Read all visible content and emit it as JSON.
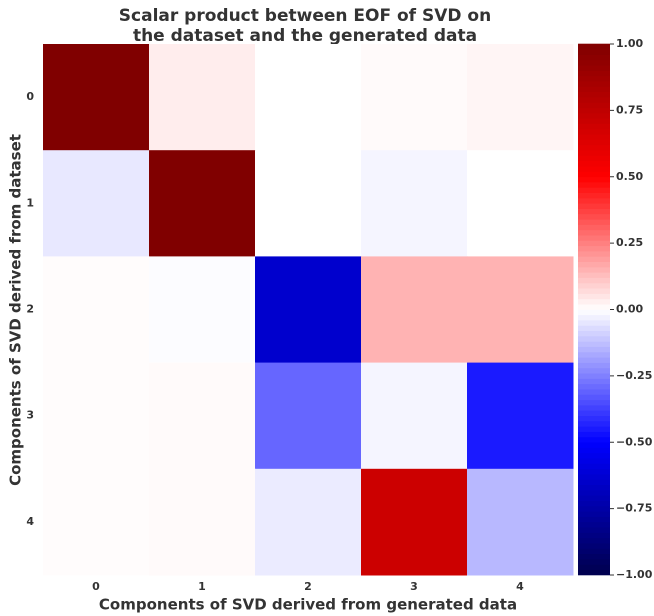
{
  "chart_data": {
    "type": "heatmap",
    "title": [
      "Scalar product between EOF of SVD on",
      "the dataset and the generated data"
    ],
    "x_label": "Components of SVD derived from generated data",
    "y_label": "Components of SVD derived from dataset",
    "x_categories": [
      "0",
      "1",
      "2",
      "3",
      "4"
    ],
    "y_categories": [
      "0",
      "1",
      "2",
      "3",
      "4"
    ],
    "values": [
      [
        1.0,
        0.035,
        0.0,
        0.01,
        0.02
      ],
      [
        -0.045,
        1.0,
        0.0,
        -0.02,
        0.0
      ],
      [
        0.005,
        -0.005,
        -0.64,
        0.15,
        0.15
      ],
      [
        0.005,
        0.01,
        -0.3,
        -0.02,
        -0.45
      ],
      [
        0.005,
        0.01,
        -0.04,
        0.7,
        -0.14
      ]
    ],
    "colormap": "seismic",
    "clim": [
      -1,
      1
    ],
    "cticks": [
      {
        "value": -1,
        "label": "−1.00"
      },
      {
        "value": -0.75,
        "label": "−0.75"
      },
      {
        "value": -0.5,
        "label": "−0.50"
      },
      {
        "value": -0.25,
        "label": "−0.25"
      },
      {
        "value": 0,
        "label": "0.00"
      },
      {
        "value": 0.25,
        "label": "0.25"
      },
      {
        "value": 0.5,
        "label": "0.50"
      },
      {
        "value": 0.75,
        "label": "0.75"
      },
      {
        "value": 1,
        "label": "1.00"
      }
    ]
  }
}
